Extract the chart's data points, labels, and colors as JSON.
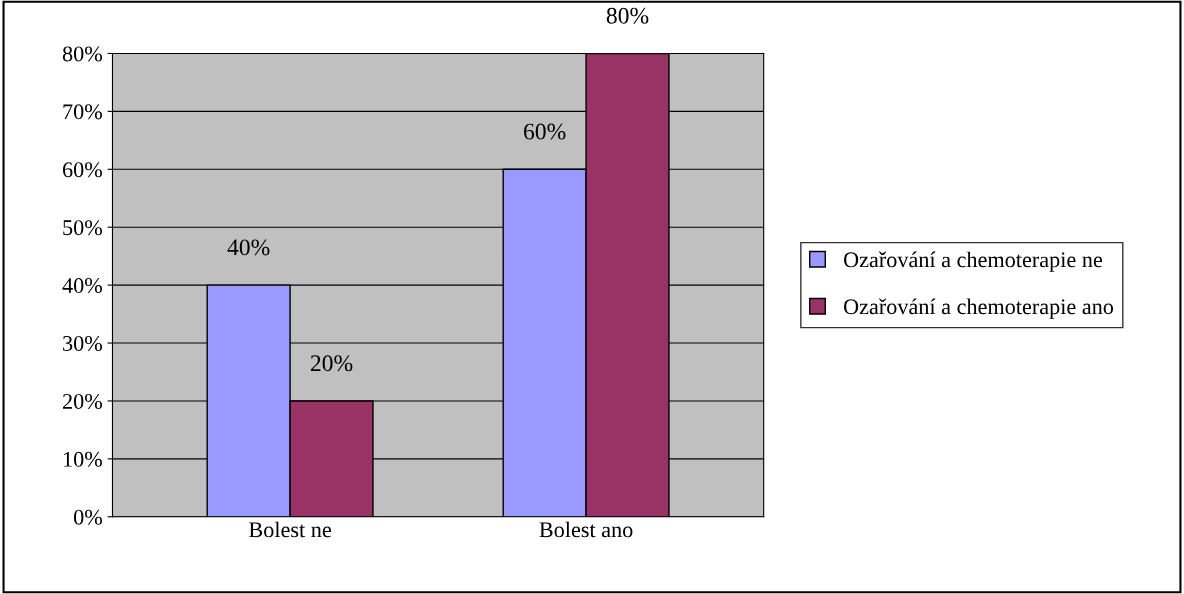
{
  "chart_data": {
    "type": "bar",
    "categories": [
      "Bolest ne",
      "Bolest ano"
    ],
    "series": [
      {
        "name": "Ozařování a chemoterapie ne",
        "color": "#9999ff",
        "values": [
          40,
          60
        ],
        "value_labels": [
          "40%",
          "60%"
        ]
      },
      {
        "name": "Ozařování a chemoterapie ano",
        "color": "#993366",
        "values": [
          20,
          80
        ],
        "value_labels": [
          "20%",
          "80%"
        ]
      }
    ],
    "ylim": [
      0,
      80
    ],
    "yticks": [
      {
        "value": 0,
        "label": "0%"
      },
      {
        "value": 10,
        "label": "10%"
      },
      {
        "value": 20,
        "label": "20%"
      },
      {
        "value": 30,
        "label": "30%"
      },
      {
        "value": 40,
        "label": "40%"
      },
      {
        "value": 50,
        "label": "50%"
      },
      {
        "value": 60,
        "label": "60%"
      },
      {
        "value": 70,
        "label": "70%"
      },
      {
        "value": 80,
        "label": "80%"
      }
    ],
    "grid": "y",
    "legend": "right"
  }
}
